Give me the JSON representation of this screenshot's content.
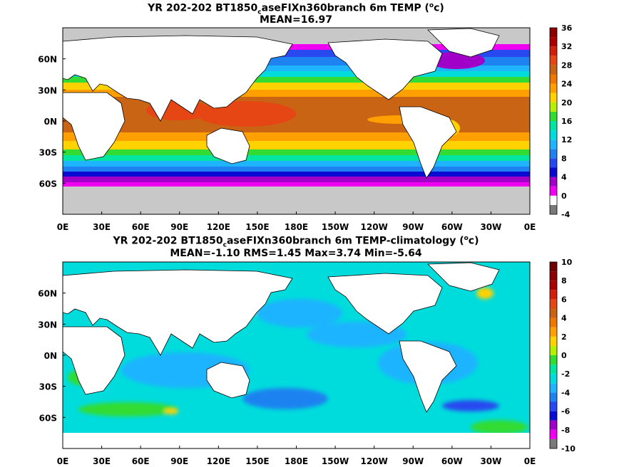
{
  "chart_data": [
    {
      "type": "heatmap",
      "title_pre": "YR 202-202 BT1850",
      "title_sub": "c",
      "title_mid": "aseFIXn360branch 6m TEMP (",
      "title_sup": "o",
      "title_post": "c)",
      "subtitle": "MEAN=16.97",
      "xticks": [
        "0E",
        "30E",
        "60E",
        "90E",
        "120E",
        "150E",
        "180E",
        "150W",
        "120W",
        "90W",
        "60W",
        "30W",
        "0E"
      ],
      "yticks": [
        "60N",
        "30N",
        "0N",
        "30S",
        "60S"
      ],
      "colorbar_ticks": [
        "36",
        "32",
        "28",
        "24",
        "20",
        "16",
        "12",
        "8",
        "4",
        "0",
        "-4"
      ],
      "colorbar_range": [
        -4,
        36
      ],
      "colorbar_colors": [
        "#7a7a7a",
        "#ffffff",
        "#f000f0",
        "#a000c8",
        "#0a0ad2",
        "#2848f0",
        "#1e82f0",
        "#1eb4ff",
        "#00dcdc",
        "#00e6a0",
        "#32dc32",
        "#b4f000",
        "#ffd200",
        "#ffa000",
        "#f07800",
        "#c86414",
        "#e64614",
        "#d21e0a",
        "#aa0000",
        "#8c0000"
      ],
      "land_color": "#ffffff",
      "missing_color": "#c8c8c8"
    },
    {
      "type": "heatmap",
      "title_pre": "YR 202-202 BT1850",
      "title_sub": "c",
      "title_mid": "aseFIXn360branch 6m TEMP-climatology (",
      "title_sup": "o",
      "title_post": "c)",
      "subtitle": "MEAN=-1.10   RMS=1.45   Max=3.74   Min=-5.64",
      "xticks": [
        "0E",
        "30E",
        "60E",
        "90E",
        "120E",
        "150E",
        "180E",
        "150W",
        "120W",
        "90W",
        "60W",
        "30W",
        "0E"
      ],
      "yticks": [
        "60N",
        "30N",
        "0N",
        "30S",
        "60S"
      ],
      "colorbar_ticks": [
        "10",
        "8",
        "6",
        "4",
        "2",
        "0",
        "-2",
        "-4",
        "-6",
        "-8",
        "-10"
      ],
      "colorbar_range": [
        -10,
        10
      ],
      "colorbar_colors": [
        "#7a7a7a",
        "#f000f0",
        "#a000c8",
        "#0a0ad2",
        "#2848f0",
        "#1e82f0",
        "#1eb4ff",
        "#00dcdc",
        "#00e6a0",
        "#32dc32",
        "#b4f000",
        "#ffd200",
        "#ffa000",
        "#f07800",
        "#c86414",
        "#e64614",
        "#d21e0a",
        "#aa0000",
        "#8c0000",
        "#700000"
      ],
      "land_color": "#ffffff",
      "missing_color": "#c8c8c8"
    }
  ]
}
